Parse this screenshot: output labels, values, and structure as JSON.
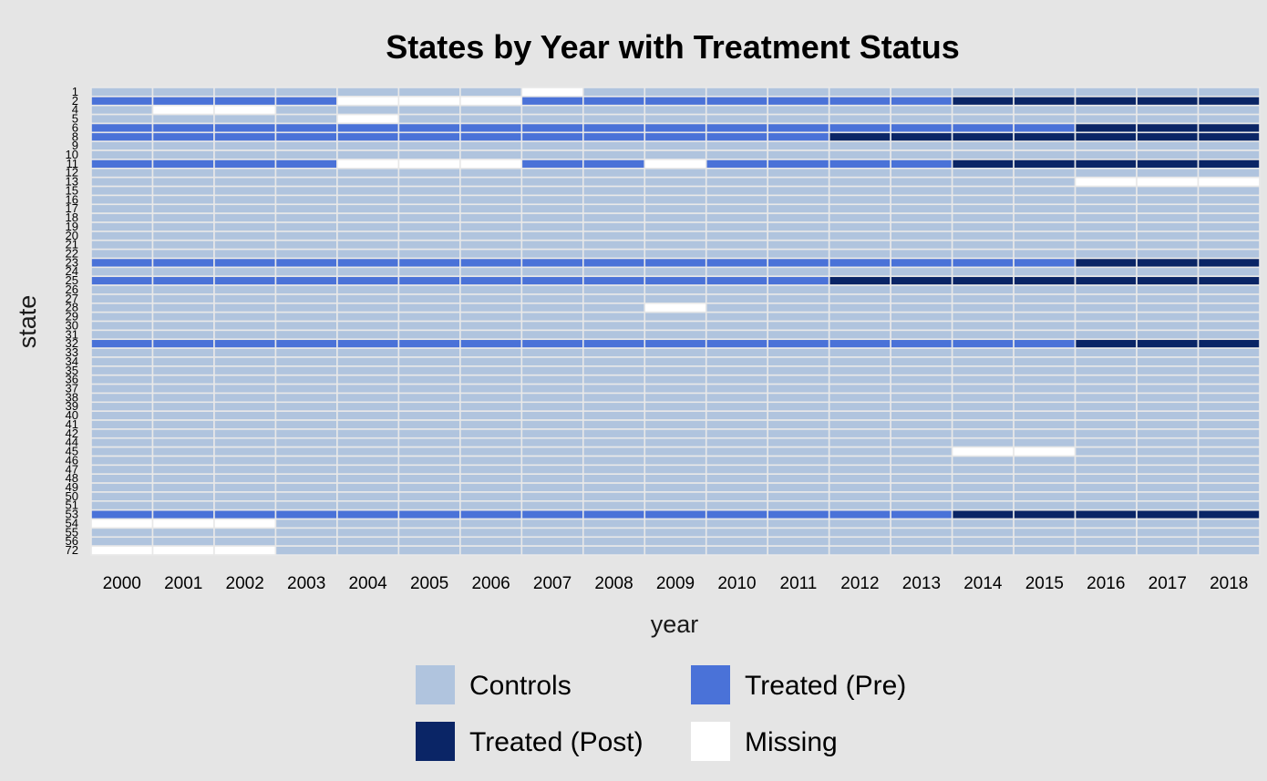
{
  "chart_data": {
    "type": "heatmap",
    "title": "States by Year with Treatment Status",
    "xlabel": "year",
    "ylabel": "state",
    "x": [
      2000,
      2001,
      2002,
      2003,
      2004,
      2005,
      2006,
      2007,
      2008,
      2009,
      2010,
      2011,
      2012,
      2013,
      2014,
      2015,
      2016,
      2017,
      2018
    ],
    "y": [
      1,
      2,
      4,
      5,
      6,
      8,
      9,
      10,
      11,
      12,
      13,
      15,
      16,
      17,
      18,
      19,
      20,
      21,
      22,
      23,
      24,
      25,
      26,
      27,
      28,
      29,
      30,
      31,
      32,
      33,
      34,
      35,
      36,
      37,
      38,
      39,
      40,
      41,
      42,
      44,
      45,
      46,
      47,
      48,
      49,
      50,
      51,
      53,
      54,
      55,
      56,
      72
    ],
    "grid": true,
    "legend_position": "bottom",
    "categories": {
      "C": {
        "label": "Controls",
        "color": "#b0c4de"
      },
      "P": {
        "label": "Treated (Pre)",
        "color": "#4a72d8"
      },
      "T": {
        "label": "Treated (Post)",
        "color": "#0a2566"
      },
      "M": {
        "label": "Missing",
        "color": "#ffffff"
      }
    },
    "legend_order": [
      "C",
      "P",
      "T",
      "M"
    ],
    "default_status": "C",
    "row_status": [
      {
        "state": 1,
        "cells": "CCCCCCCMCCCCCCCCCCC"
      },
      {
        "state": 2,
        "cells": "PPPPMMMPPPPPPPTTTTT"
      },
      {
        "state": 4,
        "cells": "CMMCCCCCCCCCCCCCCCC"
      },
      {
        "state": 5,
        "cells": "CCCCMCCCCCCCCCCCCCC"
      },
      {
        "state": 6,
        "cells": "PPPPPPPPPPPPPPPPTTT"
      },
      {
        "state": 8,
        "cells": "PPPPPPPPPPPPTTTTTTT"
      },
      {
        "state": 11,
        "cells": "PPPPMMMPPMPPPPTTTTT"
      },
      {
        "state": 13,
        "cells": "CCCCCCCCCCCCCCCCMMM"
      },
      {
        "state": 23,
        "cells": "PPPPPPPPPPPPPPPPTTT"
      },
      {
        "state": 25,
        "cells": "PPPPPPPPPPPPTTTTTTT"
      },
      {
        "state": 28,
        "cells": "CCCCCCCCCMCCCCCCCCC"
      },
      {
        "state": 32,
        "cells": "PPPPPPPPPPPPPPPPTTT"
      },
      {
        "state": 45,
        "cells": "CCCCCCCCCCCCCCMMCCC"
      },
      {
        "state": 53,
        "cells": "PPPPPPPPPPPPPPTTTTT"
      },
      {
        "state": 54,
        "cells": "MMMCCCCCCCCCCCCCCCC"
      },
      {
        "state": 72,
        "cells": "MMMCCCCCCCCCCCCCCCC"
      }
    ]
  }
}
